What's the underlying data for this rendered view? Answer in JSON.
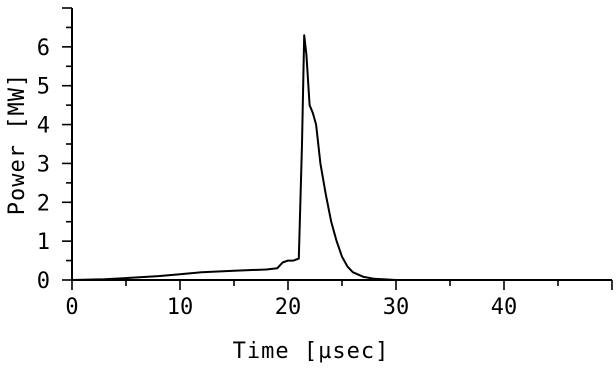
{
  "chart_data": {
    "type": "line",
    "title": "",
    "xlabel": "Time [µsec]",
    "ylabel": "Power [MW]",
    "xlim": [
      0,
      50
    ],
    "ylim": [
      0,
      7
    ],
    "xticks": [
      0,
      10,
      20,
      30,
      40
    ],
    "yticks": [
      0,
      1,
      2,
      3,
      4,
      5,
      6
    ],
    "grid": false,
    "series": [
      {
        "x": [
          0,
          3,
          5,
          8,
          10,
          12,
          15,
          18,
          19,
          19.5,
          20,
          20.5,
          21,
          21.3,
          21.5,
          21.7,
          22,
          22.3,
          22.6,
          23,
          23.5,
          24,
          24.5,
          25,
          25.5,
          26,
          27,
          28,
          30,
          35,
          50
        ],
        "y": [
          0,
          0.02,
          0.05,
          0.1,
          0.15,
          0.2,
          0.24,
          0.27,
          0.3,
          0.45,
          0.5,
          0.5,
          0.55,
          3.5,
          6.3,
          5.8,
          4.5,
          4.3,
          4.0,
          3.0,
          2.2,
          1.5,
          1.0,
          0.6,
          0.35,
          0.2,
          0.08,
          0.03,
          0.0,
          0.0,
          0.0
        ]
      }
    ]
  }
}
